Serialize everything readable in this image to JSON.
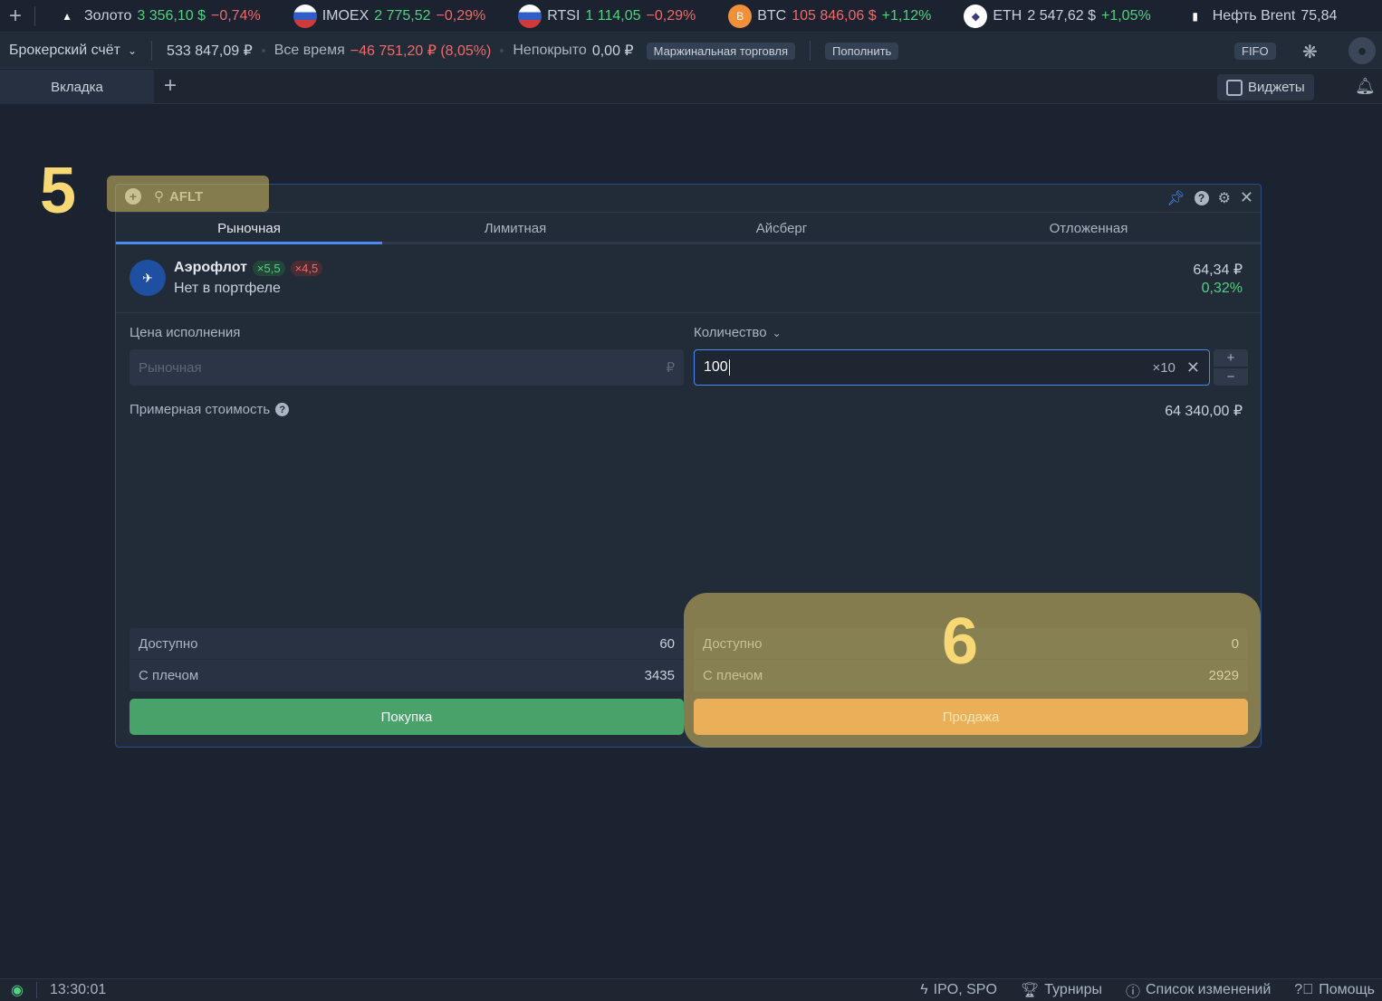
{
  "ticker": [
    {
      "name": "Золото",
      "price": "3 356,10 $",
      "change": "−0,74%",
      "price_color": "green",
      "change_color": "red",
      "icon": "gold-bars-icon"
    },
    {
      "name": "IMOEX",
      "price": "2 775,52",
      "change": "−0,29%",
      "price_color": "green",
      "change_color": "red",
      "icon": "russia-flag-icon"
    },
    {
      "name": "RTSI",
      "price": "1 114,05",
      "change": "−0,29%",
      "price_color": "green",
      "change_color": "red",
      "icon": "russia-flag-icon"
    },
    {
      "name": "BTC",
      "price": "105 846,06 $",
      "change": "+1,12%",
      "price_color": "red",
      "change_color": "green",
      "icon": "bitcoin-icon"
    },
    {
      "name": "ETH",
      "price": "2 547,62 $",
      "change": "+1,05%",
      "price_color": "plain",
      "change_color": "green",
      "icon": "ethereum-icon"
    },
    {
      "name": "Нефть Brent",
      "price": "75,84",
      "change": "",
      "price_color": "plain",
      "change_color": "green",
      "icon": "fuel-icon"
    }
  ],
  "account": {
    "name": "Брокерский счёт",
    "balance": "533 847,09 ₽",
    "all_time_label": "Все время",
    "all_time_value": "−46 751,20 ₽ (8,05%)",
    "uncovered_label": "Непокрыто",
    "uncovered_value": "0,00 ₽",
    "margin_label": "Маржинальная торговля",
    "deposit_label": "Пополнить",
    "fifo_label": "FIFO"
  },
  "tabs": {
    "active": "Вкладка",
    "widgets_label": "Виджеты"
  },
  "widget": {
    "search_value": "AFLT",
    "order_tabs": [
      "Рыночная",
      "Лимитная",
      "Айсберг",
      "Отложенная"
    ],
    "active_tab": 0,
    "instrument": {
      "name": "Аэрофлот",
      "long_lev": "×5,5",
      "short_lev": "×4,5",
      "portfolio": "Нет в портфеле",
      "price": "64,34 ₽",
      "change": "0,32%"
    },
    "price_label": "Цена исполнения",
    "price_placeholder": "Рыночная",
    "currency": "₽",
    "qty_label": "Количество",
    "qty_value": "100",
    "lot_mult": "×10",
    "est_label": "Примерная стоимость",
    "est_value": "64 340,00 ₽",
    "buy": {
      "available_label": "Доступно",
      "available": "60",
      "leverage_label": "С плечом",
      "leverage": "3435",
      "button": "Покупка"
    },
    "sell": {
      "available_label": "Доступно",
      "available": "0",
      "leverage_label": "С плечом",
      "leverage": "2929",
      "button": "Продажа"
    }
  },
  "annotations": [
    "5",
    "6"
  ],
  "status": {
    "time": "13:30:01",
    "links": [
      "IPO, SPO",
      "Турниры",
      "Список изменений",
      "Помощь"
    ]
  },
  "colors": {
    "buy": "#48a26a",
    "sell": "#c28552",
    "accent": "#4a8af4",
    "green": "#4fd37f",
    "red": "#f06a6a"
  }
}
